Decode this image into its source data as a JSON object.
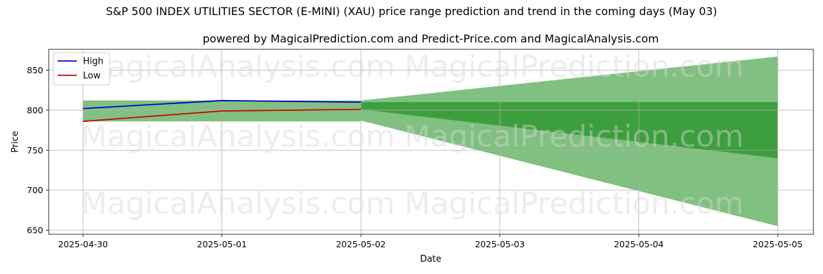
{
  "title": "S&P 500 INDEX UTILITIES SECTOR (E-MINI) (XAU) price range prediction and trend in the coming days (May 03)",
  "subtitle": "powered by MagicalPrediction.com and Predict-Price.com and MagicalAnalysis.com",
  "watermarks": [
    "MagicalAnalysis.com",
    "MagicalPrediction.com"
  ],
  "chart_data": {
    "type": "line",
    "title": "S&P 500 INDEX UTILITIES SECTOR (E-MINI) (XAU) price range prediction and trend in the coming days (May 03)",
    "subtitle": "powered by MagicalPrediction.com and Predict-Price.com and MagicalAnalysis.com",
    "xlabel": "Date",
    "ylabel": "Price",
    "x": [
      "2025-04-30",
      "2025-05-01",
      "2025-05-02",
      "2025-05-03",
      "2025-05-04",
      "2025-05-05"
    ],
    "ylim": [
      645,
      876
    ],
    "yticks": [
      650,
      700,
      750,
      800,
      850
    ],
    "grid": true,
    "legend_position": "top-left",
    "series": [
      {
        "name": "High",
        "color": "#0000cc",
        "x": [
          "2025-04-30",
          "2025-05-01",
          "2025-05-02"
        ],
        "values": [
          802,
          812,
          810
        ]
      },
      {
        "name": "Low",
        "color": "#cc0000",
        "x": [
          "2025-04-30",
          "2025-05-01",
          "2025-05-02"
        ],
        "values": [
          786,
          799,
          801
        ]
      }
    ],
    "bands": [
      {
        "color": "#80c080",
        "x": [
          "2025-04-30",
          "2025-05-02"
        ],
        "upper": [
          812,
          812
        ],
        "lower": [
          786,
          786
        ]
      },
      {
        "color": "#80c080",
        "x": [
          "2025-05-02",
          "2025-05-05"
        ],
        "upper": [
          812,
          867
        ],
        "lower": [
          787,
          655
        ]
      },
      {
        "color": "#3d9e3d",
        "x": [
          "2025-05-02",
          "2025-05-05"
        ],
        "upper": [
          810,
          810
        ],
        "lower": [
          801,
          740
        ]
      }
    ]
  }
}
